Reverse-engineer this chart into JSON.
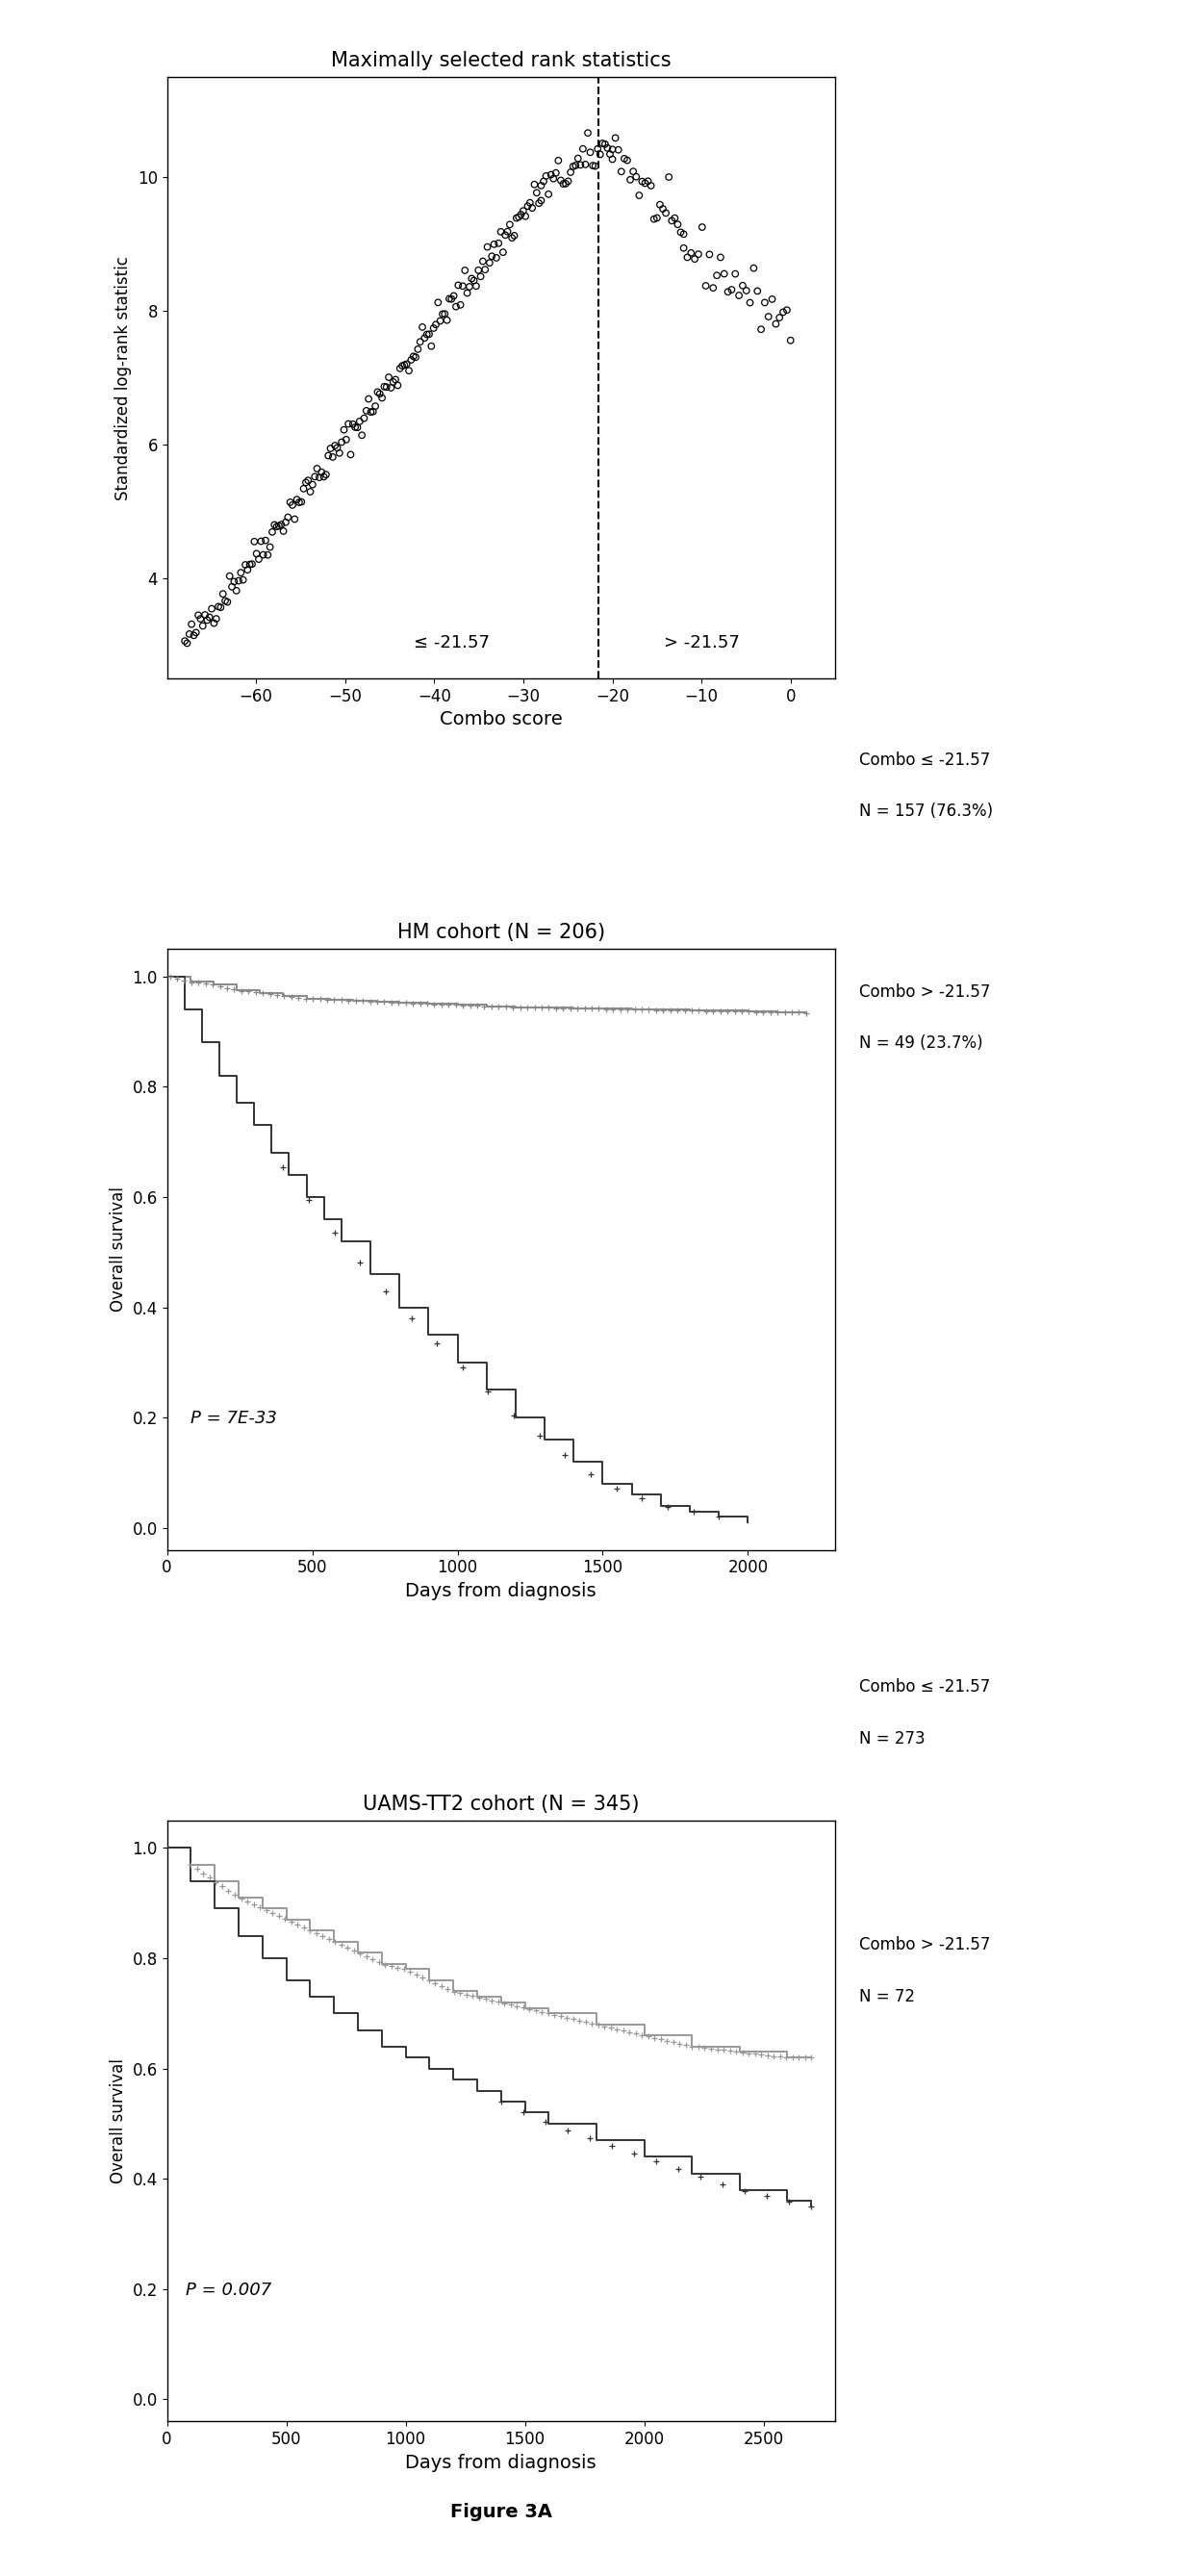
{
  "panel1": {
    "title": "Maximally selected rank statistics",
    "xlabel": "Combo score",
    "ylabel": "Standardized log-rank statistic",
    "xlim": [
      -70,
      5
    ],
    "ylim": [
      2.5,
      11.5
    ],
    "xticks": [
      -60,
      -50,
      -40,
      -30,
      -20,
      -10,
      0
    ],
    "yticks": [
      4,
      6,
      8,
      10
    ],
    "cutoff": -21.57,
    "label_left": "≤ -21.57",
    "label_right": "> -21.57"
  },
  "panel2": {
    "title": "HM cohort (N = 206)",
    "xlabel": "Days from diagnosis",
    "ylabel": "Overall survival",
    "xlim": [
      0,
      2300
    ],
    "ylim": [
      -0.04,
      1.05
    ],
    "xticks": [
      0,
      500,
      1000,
      1500,
      2000
    ],
    "yticks": [
      0.0,
      0.2,
      0.4,
      0.6,
      0.8,
      1.0
    ],
    "pvalue": "P = 7E-33",
    "legend1_line1": "Combo ≤ -21.57",
    "legend1_line2": "N = 157 (76.3%)",
    "legend2_line1": "Combo > -21.57",
    "legend2_line2": "N = 49 (23.7%)",
    "color_low": "#888888",
    "color_high": "#333333"
  },
  "panel3": {
    "title": "UAMS-TT2 cohort (N = 345)",
    "xlabel": "Days from diagnosis",
    "ylabel": "Overall survival",
    "xlim": [
      0,
      2800
    ],
    "ylim": [
      -0.04,
      1.05
    ],
    "xticks": [
      0,
      500,
      1000,
      1500,
      2000,
      2500
    ],
    "yticks": [
      0.0,
      0.2,
      0.4,
      0.6,
      0.8,
      1.0
    ],
    "pvalue": "P = 0.007",
    "legend1_line1": "Combo ≤ -21.57",
    "legend1_line2": "N = 273",
    "legend2_line1": "Combo > -21.57",
    "legend2_line2": "N = 72",
    "color_low": "#999999",
    "color_high": "#333333"
  },
  "figure_label": "Figure 3A",
  "background_color": "#ffffff"
}
